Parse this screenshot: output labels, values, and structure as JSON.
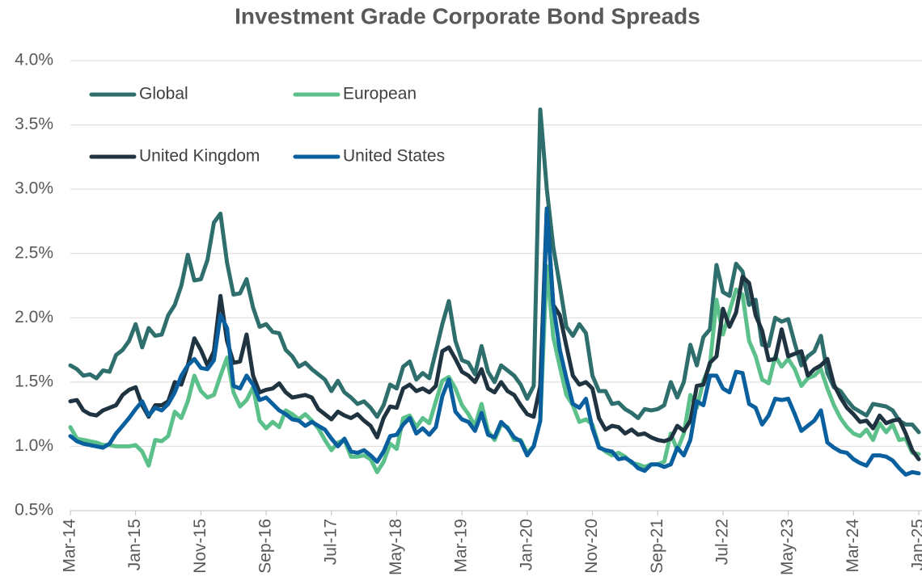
{
  "chart_data": {
    "type": "line",
    "title": "Investment Grade Corporate Bond Spreads",
    "categories": [
      "Mar-14",
      null,
      null,
      null,
      null,
      null,
      null,
      null,
      null,
      null,
      "Jan-15",
      null,
      null,
      null,
      null,
      null,
      null,
      null,
      null,
      null,
      "Nov-15",
      null,
      null,
      null,
      null,
      null,
      null,
      null,
      null,
      null,
      "Sep-16",
      null,
      null,
      null,
      null,
      null,
      null,
      null,
      null,
      null,
      "Jul-17",
      null,
      null,
      null,
      null,
      null,
      null,
      null,
      null,
      null,
      "May-18",
      null,
      null,
      null,
      null,
      null,
      null,
      null,
      null,
      null,
      "Mar-19",
      null,
      null,
      null,
      null,
      null,
      null,
      null,
      null,
      null,
      "Jan-20",
      null,
      null,
      null,
      null,
      null,
      null,
      null,
      null,
      null,
      "Nov-20",
      null,
      null,
      null,
      null,
      null,
      null,
      null,
      null,
      null,
      "Sep-21",
      null,
      null,
      null,
      null,
      null,
      null,
      null,
      null,
      null,
      "Jul-22",
      null,
      null,
      null,
      null,
      null,
      null,
      null,
      null,
      null,
      "May-23",
      null,
      null,
      null,
      null,
      null,
      null,
      null,
      null,
      null,
      "Mar-24",
      null,
      null,
      null,
      null,
      null,
      null,
      null,
      null,
      null,
      "Jan-25"
    ],
    "series": [
      {
        "name": "Global",
        "color": "#2e6e6c",
        "values": [
          1.63,
          1.6,
          1.55,
          1.56,
          1.53,
          1.59,
          1.58,
          1.71,
          1.75,
          1.82,
          1.95,
          1.77,
          1.92,
          1.86,
          1.87,
          2.02,
          2.1,
          2.25,
          2.49,
          2.29,
          2.3,
          2.45,
          2.74,
          2.81,
          2.43,
          2.18,
          2.19,
          2.3,
          2.08,
          1.93,
          1.95,
          1.89,
          1.88,
          1.75,
          1.7,
          1.62,
          1.65,
          1.6,
          1.56,
          1.52,
          1.43,
          1.51,
          1.42,
          1.38,
          1.33,
          1.35,
          1.3,
          1.23,
          1.32,
          1.48,
          1.45,
          1.62,
          1.66,
          1.52,
          1.57,
          1.53,
          1.74,
          1.95,
          2.13,
          1.82,
          1.67,
          1.65,
          1.56,
          1.78,
          1.58,
          1.5,
          1.63,
          1.59,
          1.55,
          1.48,
          1.37,
          1.47,
          3.62,
          3.0,
          2.55,
          2.25,
          1.93,
          1.86,
          1.95,
          1.88,
          1.55,
          1.43,
          1.43,
          1.33,
          1.34,
          1.29,
          1.26,
          1.22,
          1.29,
          1.28,
          1.29,
          1.32,
          1.5,
          1.38,
          1.5,
          1.79,
          1.63,
          1.85,
          1.91,
          2.41,
          2.2,
          2.17,
          2.42,
          2.36,
          2.1,
          2.14,
          1.79,
          1.78,
          2.0,
          1.97,
          1.99,
          1.8,
          1.63,
          1.7,
          1.74,
          1.86,
          1.57,
          1.46,
          1.43,
          1.36,
          1.3,
          1.27,
          1.24,
          1.33,
          1.32,
          1.31,
          1.28,
          1.2,
          1.17,
          1.17,
          1.11
        ]
      },
      {
        "name": "European",
        "color": "#5cc08a",
        "values": [
          1.15,
          1.06,
          1.05,
          1.04,
          1.03,
          1.01,
          1.01,
          1.0,
          1.0,
          1.0,
          1.01,
          0.96,
          0.85,
          1.05,
          1.04,
          1.08,
          1.27,
          1.22,
          1.35,
          1.55,
          1.43,
          1.38,
          1.4,
          1.55,
          1.69,
          1.42,
          1.31,
          1.36,
          1.46,
          1.2,
          1.14,
          1.19,
          1.15,
          1.28,
          1.25,
          1.21,
          1.25,
          1.2,
          1.14,
          1.05,
          0.97,
          1.03,
          1.05,
          0.92,
          0.92,
          0.93,
          0.9,
          0.8,
          0.88,
          1.02,
          0.98,
          1.22,
          1.24,
          1.15,
          1.22,
          1.18,
          1.35,
          1.51,
          1.54,
          1.45,
          1.32,
          1.25,
          1.16,
          1.33,
          1.12,
          1.05,
          1.17,
          1.15,
          1.05,
          1.05,
          0.95,
          1.0,
          1.2,
          2.4,
          1.85,
          1.62,
          1.4,
          1.32,
          1.19,
          1.21,
          1.17,
          1.0,
          0.96,
          0.93,
          0.95,
          0.92,
          0.87,
          0.86,
          0.84,
          0.86,
          0.86,
          0.88,
          1.1,
          0.97,
          1.1,
          1.4,
          1.3,
          1.51,
          1.63,
          2.14,
          1.87,
          2.05,
          2.22,
          2.18,
          1.82,
          1.7,
          1.52,
          1.49,
          1.7,
          1.62,
          1.68,
          1.6,
          1.47,
          1.53,
          1.55,
          1.6,
          1.45,
          1.32,
          1.22,
          1.15,
          1.1,
          1.08,
          1.13,
          1.05,
          1.18,
          1.11,
          1.17,
          1.05,
          1.06,
          0.95,
          0.94
        ]
      },
      {
        "name": "United Kingdom",
        "color": "#1f3340",
        "values": [
          1.35,
          1.36,
          1.28,
          1.25,
          1.24,
          1.28,
          1.3,
          1.32,
          1.4,
          1.44,
          1.46,
          1.32,
          1.23,
          1.32,
          1.32,
          1.35,
          1.5,
          1.48,
          1.63,
          1.84,
          1.75,
          1.63,
          1.74,
          2.17,
          1.82,
          1.65,
          1.66,
          1.87,
          1.55,
          1.42,
          1.44,
          1.45,
          1.49,
          1.42,
          1.38,
          1.39,
          1.4,
          1.38,
          1.29,
          1.25,
          1.21,
          1.27,
          1.24,
          1.22,
          1.25,
          1.2,
          1.16,
          1.07,
          1.22,
          1.31,
          1.3,
          1.45,
          1.48,
          1.43,
          1.45,
          1.42,
          1.47,
          1.74,
          1.77,
          1.68,
          1.58,
          1.55,
          1.5,
          1.6,
          1.45,
          1.42,
          1.5,
          1.43,
          1.4,
          1.32,
          1.25,
          1.23,
          1.47,
          2.85,
          2.1,
          2.02,
          1.78,
          1.55,
          1.48,
          1.5,
          1.45,
          1.22,
          1.13,
          1.16,
          1.15,
          1.1,
          1.13,
          1.09,
          1.1,
          1.07,
          1.05,
          1.04,
          1.06,
          1.16,
          1.12,
          1.2,
          1.47,
          1.48,
          1.65,
          1.7,
          2.07,
          1.93,
          2.04,
          2.32,
          2.27,
          2.02,
          1.9,
          1.67,
          1.68,
          1.91,
          1.7,
          1.72,
          1.74,
          1.55,
          1.6,
          1.63,
          1.68,
          1.48,
          1.38,
          1.3,
          1.25,
          1.19,
          1.2,
          1.14,
          1.24,
          1.18,
          1.2,
          1.21,
          1.1,
          0.97,
          0.9
        ]
      },
      {
        "name": "United States",
        "color": "#0a5f9e",
        "values": [
          1.08,
          1.04,
          1.02,
          1.01,
          1.0,
          0.99,
          1.02,
          1.1,
          1.16,
          1.22,
          1.29,
          1.35,
          1.24,
          1.3,
          1.28,
          1.33,
          1.42,
          1.55,
          1.63,
          1.68,
          1.61,
          1.6,
          1.67,
          2.02,
          1.92,
          1.47,
          1.45,
          1.55,
          1.48,
          1.36,
          1.38,
          1.33,
          1.28,
          1.25,
          1.21,
          1.2,
          1.16,
          1.19,
          1.16,
          1.13,
          1.06,
          1.0,
          1.06,
          0.96,
          0.95,
          0.97,
          0.93,
          0.88,
          0.96,
          1.08,
          1.09,
          1.17,
          1.22,
          1.1,
          1.14,
          1.09,
          1.15,
          1.39,
          1.52,
          1.27,
          1.21,
          1.19,
          1.12,
          1.26,
          1.09,
          1.07,
          1.19,
          1.14,
          1.07,
          1.04,
          0.93,
          1.0,
          1.2,
          2.85,
          2.1,
          1.75,
          1.53,
          1.33,
          1.3,
          1.37,
          1.14,
          0.99,
          0.97,
          0.96,
          0.9,
          0.91,
          0.88,
          0.83,
          0.81,
          0.86,
          0.86,
          0.84,
          0.86,
          0.99,
          0.93,
          1.05,
          1.35,
          1.32,
          1.55,
          1.55,
          1.45,
          1.42,
          1.58,
          1.57,
          1.33,
          1.3,
          1.17,
          1.24,
          1.37,
          1.36,
          1.37,
          1.25,
          1.12,
          1.16,
          1.2,
          1.28,
          1.03,
          0.99,
          0.96,
          0.95,
          0.9,
          0.87,
          0.85,
          0.93,
          0.93,
          0.92,
          0.89,
          0.83,
          0.78,
          0.8,
          0.79
        ]
      }
    ],
    "ylim": [
      0.5,
      4.0
    ],
    "yticks": [
      {
        "value": 0.5,
        "label": "0.5%"
      },
      {
        "value": 1.0,
        "label": "1.0%"
      },
      {
        "value": 1.5,
        "label": "1.5%"
      },
      {
        "value": 2.0,
        "label": "2.0%"
      },
      {
        "value": 2.5,
        "label": "2.5%"
      },
      {
        "value": 3.0,
        "label": "3.0%"
      },
      {
        "value": 3.5,
        "label": "3.5%"
      },
      {
        "value": 4.0,
        "label": "4.0%"
      }
    ],
    "grid": true,
    "legend": "upper left"
  }
}
